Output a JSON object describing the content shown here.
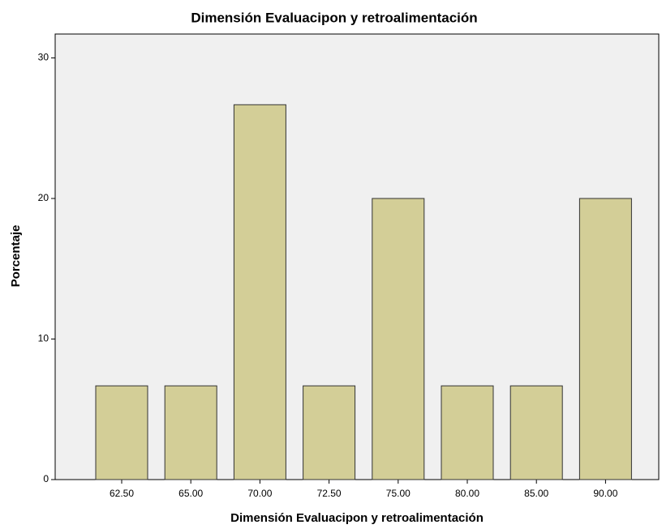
{
  "chart_data": {
    "type": "bar",
    "title": "Dimensión Evaluacipon y retroalimentación",
    "x_label": "Dimensión Evaluacipon y retroalimentación",
    "y_label": "Porcentaje",
    "categories": [
      "62.50",
      "65.00",
      "70.00",
      "72.50",
      "75.00",
      "80.00",
      "85.00",
      "90.00"
    ],
    "values": [
      6.67,
      6.67,
      26.67,
      6.67,
      20,
      6.67,
      6.67,
      20
    ],
    "color": "#d3ce97",
    "ylim": [
      0,
      31.7
    ],
    "yticks": [
      0,
      10,
      20,
      30
    ],
    "grid": false
  }
}
